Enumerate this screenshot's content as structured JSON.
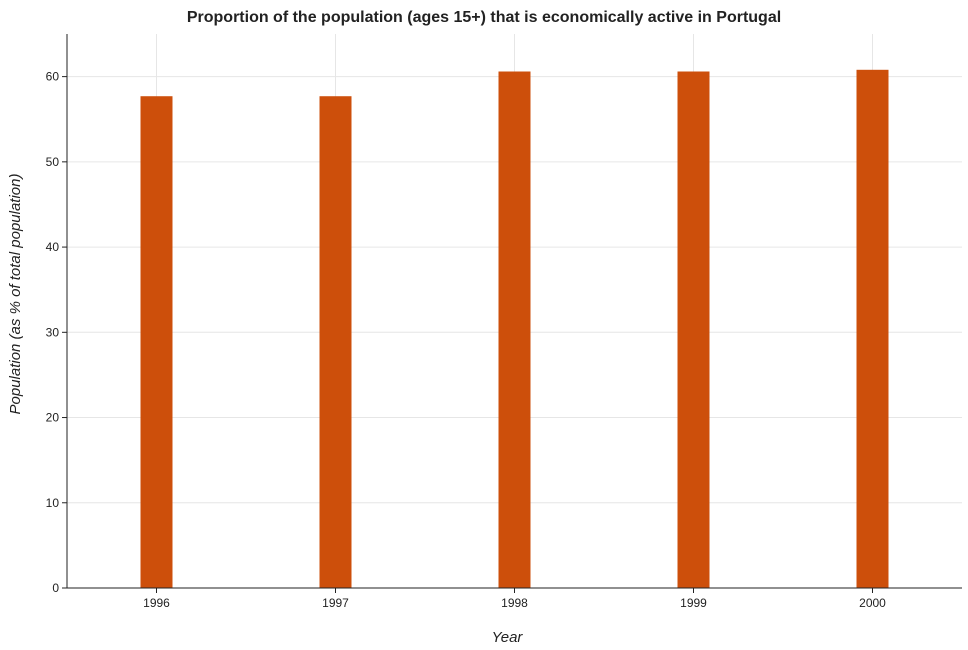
{
  "title": "Proportion of the population (ages 15+) that is economically active in Portugal",
  "chart_data": {
    "type": "bar",
    "title": "Proportion of the population (ages 15+) that is economically active in Portugal",
    "xlabel": "Year",
    "ylabel": "Population (as % of total population)",
    "categories": [
      "1996",
      "1997",
      "1998",
      "1999",
      "2000"
    ],
    "values": [
      57.7,
      57.7,
      60.6,
      60.6,
      60.8
    ],
    "ylim": [
      0,
      65
    ],
    "yticks": [
      "0",
      "10",
      "20",
      "30",
      "40",
      "50",
      "60"
    ],
    "grid": true,
    "legend": "none",
    "colors": {
      "bar_fill": "#cd4f0b",
      "grid": "#e6e6e6",
      "axis": "#222222"
    }
  }
}
